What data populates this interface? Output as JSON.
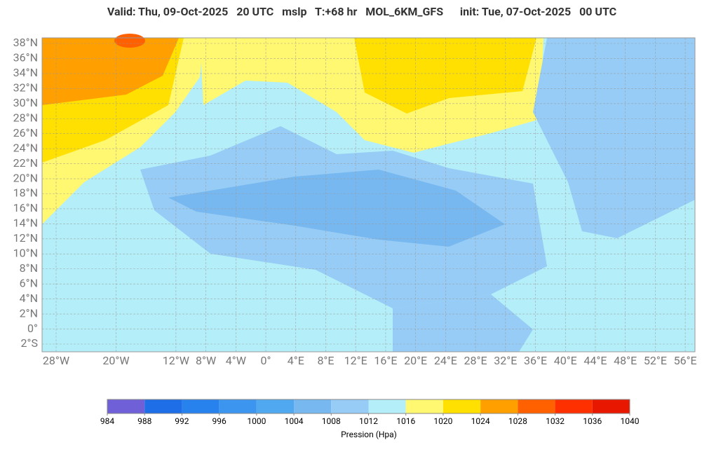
{
  "title": "Valid: Thu, 09-Oct-2025   20 UTC   mslp   T:+68 hr   MOL_6KM_GFS      init: Tue, 07-Oct-2025   00 UTC",
  "map": {
    "lat_labels": [
      {
        "value": 38,
        "label": "38°N"
      },
      {
        "value": 36,
        "label": "36°N"
      },
      {
        "value": 34,
        "label": "34°N"
      },
      {
        "value": 32,
        "label": "32°N"
      },
      {
        "value": 30,
        "label": "30°N"
      },
      {
        "value": 28,
        "label": "28°N"
      },
      {
        "value": 26,
        "label": "26°N"
      },
      {
        "value": 24,
        "label": "24°N"
      },
      {
        "value": 22,
        "label": "22°N"
      },
      {
        "value": 20,
        "label": "20°N"
      },
      {
        "value": 18,
        "label": "18°N"
      },
      {
        "value": 16,
        "label": "16°N"
      },
      {
        "value": 14,
        "label": "14°N"
      },
      {
        "value": 12,
        "label": "12°N"
      },
      {
        "value": 10,
        "label": "10°N"
      },
      {
        "value": 8,
        "label": "8°N"
      },
      {
        "value": 6,
        "label": "6°N"
      },
      {
        "value": 4,
        "label": "4°N"
      },
      {
        "value": 2,
        "label": "2°N"
      },
      {
        "value": 0,
        "label": "0°"
      },
      {
        "value": -2,
        "label": "2°S"
      }
    ],
    "lon_labels": [
      {
        "value": -28,
        "label": "28°W"
      },
      {
        "value": -20,
        "label": "20°W"
      },
      {
        "value": -12,
        "label": "12°W"
      },
      {
        "value": -8,
        "label": "8°W"
      },
      {
        "value": -4,
        "label": "4°W"
      },
      {
        "value": 0,
        "label": "0°"
      },
      {
        "value": 4,
        "label": "4°E"
      },
      {
        "value": 8,
        "label": "8°E"
      },
      {
        "value": 12,
        "label": "12°E"
      },
      {
        "value": 16,
        "label": "16°E"
      },
      {
        "value": 20,
        "label": "20°E"
      },
      {
        "value": 24,
        "label": "24°E"
      },
      {
        "value": 28,
        "label": "28°E"
      },
      {
        "value": 32,
        "label": "32°E"
      },
      {
        "value": 36,
        "label": "36°E"
      },
      {
        "value": 40,
        "label": "40°E"
      },
      {
        "value": 44,
        "label": "44°E"
      },
      {
        "value": 48,
        "label": "48°E"
      },
      {
        "value": 52,
        "label": "52°E"
      },
      {
        "value": 56,
        "label": "56°E"
      }
    ]
  },
  "colorbar": {
    "ticks": [
      984,
      988,
      992,
      996,
      1000,
      1004,
      1008,
      1012,
      1016,
      1020,
      1024,
      1028,
      1032,
      1036,
      1040
    ],
    "colors": [
      "#7060d8",
      "#1e6ee8",
      "#2882ee",
      "#3c96f0",
      "#50a8f0",
      "#78b8f0",
      "#96ccf5",
      "#b4eef8",
      "#fff870",
      "#ffe000",
      "#ffa000",
      "#ff6000",
      "#ff3000",
      "#e81800"
    ],
    "label": "Pression (Hpa)"
  }
}
